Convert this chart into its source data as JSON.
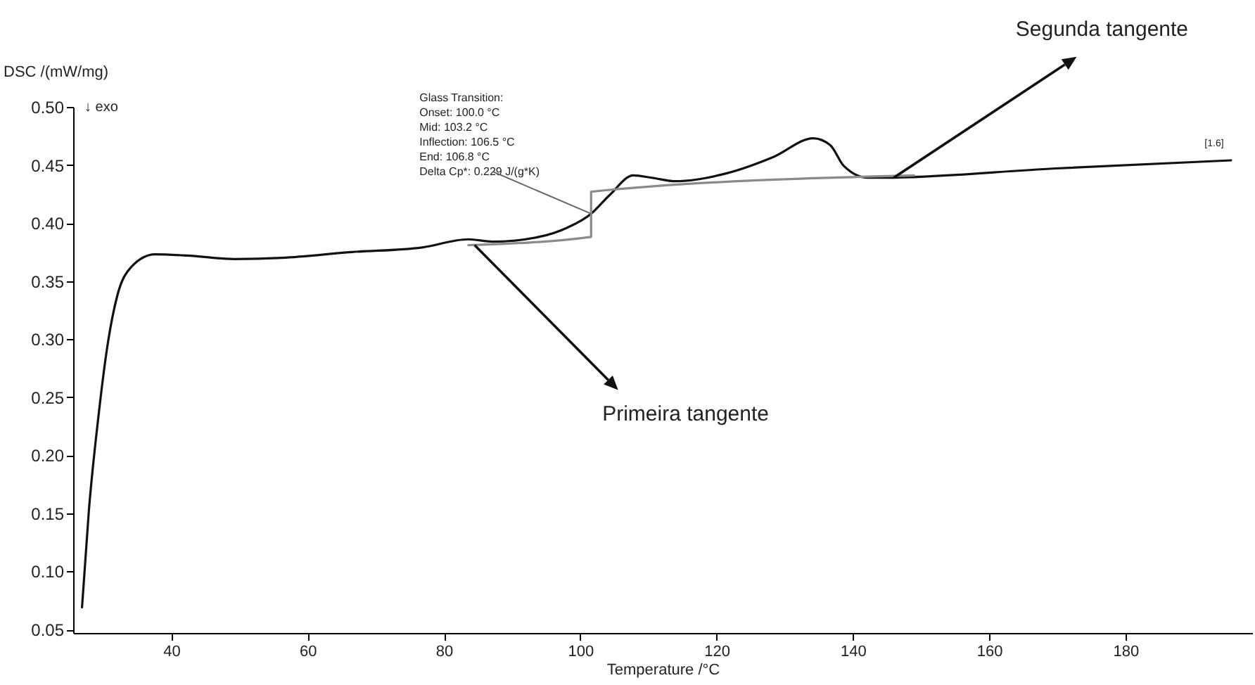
{
  "chart_data": {
    "type": "line",
    "xlabel": "Temperature /°C",
    "ylabel": "DSC /(mW/mg)",
    "xlim": [
      25.6,
      198.6
    ],
    "ylim": [
      0.047,
      0.5
    ],
    "xticks": [
      40,
      60,
      80,
      100,
      120,
      140,
      160,
      180
    ],
    "yticks": [
      {
        "value": 0.05,
        "label": "0.05"
      },
      {
        "value": 0.1,
        "label": "0.10"
      },
      {
        "value": 0.15,
        "label": "0.15"
      },
      {
        "value": 0.2,
        "label": "0.20"
      },
      {
        "value": 0.25,
        "label": "0.25"
      },
      {
        "value": 0.3,
        "label": "0.30"
      },
      {
        "value": 0.35,
        "label": "0.35"
      },
      {
        "value": 0.4,
        "label": "0.40"
      },
      {
        "value": 0.45,
        "label": "0.45"
      },
      {
        "value": 0.5,
        "label": "0.50"
      }
    ],
    "grid": false,
    "legend": false,
    "marker": "none",
    "line_style": "solid",
    "series": [
      {
        "color": "#111111",
        "x": [
          26.9,
          27.9,
          29.3,
          30.7,
          32.1,
          34.1,
          37.6,
          42.3,
          49.3,
          56.2,
          66.5,
          76.8,
          83.6,
          87.1,
          93.9,
          98.1,
          101.6,
          104.3,
          107.8,
          110.5,
          114.0,
          121.6,
          128.4,
          134.2,
          136.7,
          138.7,
          142.2,
          144.3,
          169.7,
          195.5
        ],
        "values": [
          0.069,
          0.152,
          0.233,
          0.297,
          0.338,
          0.362,
          0.373,
          0.372,
          0.369,
          0.37,
          0.375,
          0.379,
          0.386,
          0.384,
          0.388,
          0.396,
          0.408,
          0.424,
          0.441,
          0.439,
          0.436,
          0.443,
          0.457,
          0.473,
          0.467,
          0.449,
          0.439,
          0.439,
          0.447,
          0.454
        ]
      },
      {
        "color": "#8a8a8a",
        "x": [
          83.6,
          101.6,
          101.6,
          149.0
        ],
        "values": [
          0.381,
          0.388,
          0.427,
          0.441
        ]
      }
    ],
    "annotations": [
      "↓ exo",
      {
        "text": "Glass Transition:\nOnset:      100.0 °C\nMid:         103.2 °C\nInflection:  106.5 °C\nEnd:         106.8 °C\nDelta Cp*:      0.229 J/(g*K)",
        "x": 101.6,
        "y": 0.408
      },
      {
        "text": "[1.6]",
        "x": 195.5,
        "y": 0.454
      },
      {
        "text": "Segunda tangente",
        "x": 146.0,
        "y": 0.439
      },
      {
        "text": "Primeira tangente",
        "x": 84.5,
        "y": 0.381
      }
    ]
  }
}
